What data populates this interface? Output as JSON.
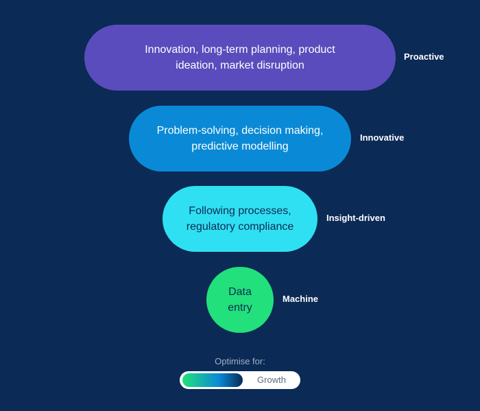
{
  "tiers": [
    {
      "text": "Innovation, long-term planning, product ideation, market disruption",
      "label": "Proactive",
      "color": "#5b4cbd"
    },
    {
      "text": "Problem-solving, decision making, predictive modelling",
      "label": "Innovative",
      "color": "#0a8ad6"
    },
    {
      "text": "Following processes, regulatory compliance",
      "label": "Insight-driven",
      "color": "#2ee0f2"
    },
    {
      "text": "Data entry",
      "label": "Machine",
      "color": "#22e07b"
    }
  ],
  "legend": {
    "title": "Optimise for:",
    "value": "Growth",
    "gradient_colors": [
      "#22e07b",
      "#0a8ad6",
      "#0b2a55"
    ]
  },
  "colors": {
    "background": "#0b2a55"
  }
}
